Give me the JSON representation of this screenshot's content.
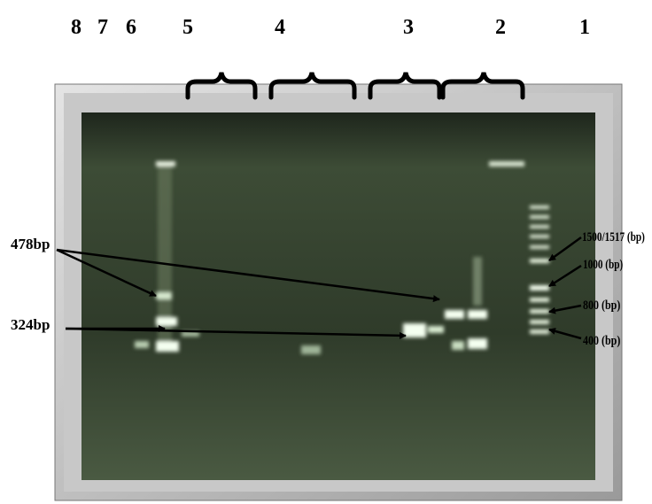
{
  "lane_numbers": [
    "8",
    "7",
    "6",
    "5",
    "4",
    "3",
    "2",
    "1"
  ],
  "band_labels": [
    "478bp",
    "324bp"
  ],
  "ladder_labels": [
    "1500/1517 (bp)",
    "1000 (bp)",
    "800 (bp)",
    "400 (bp)"
  ]
}
